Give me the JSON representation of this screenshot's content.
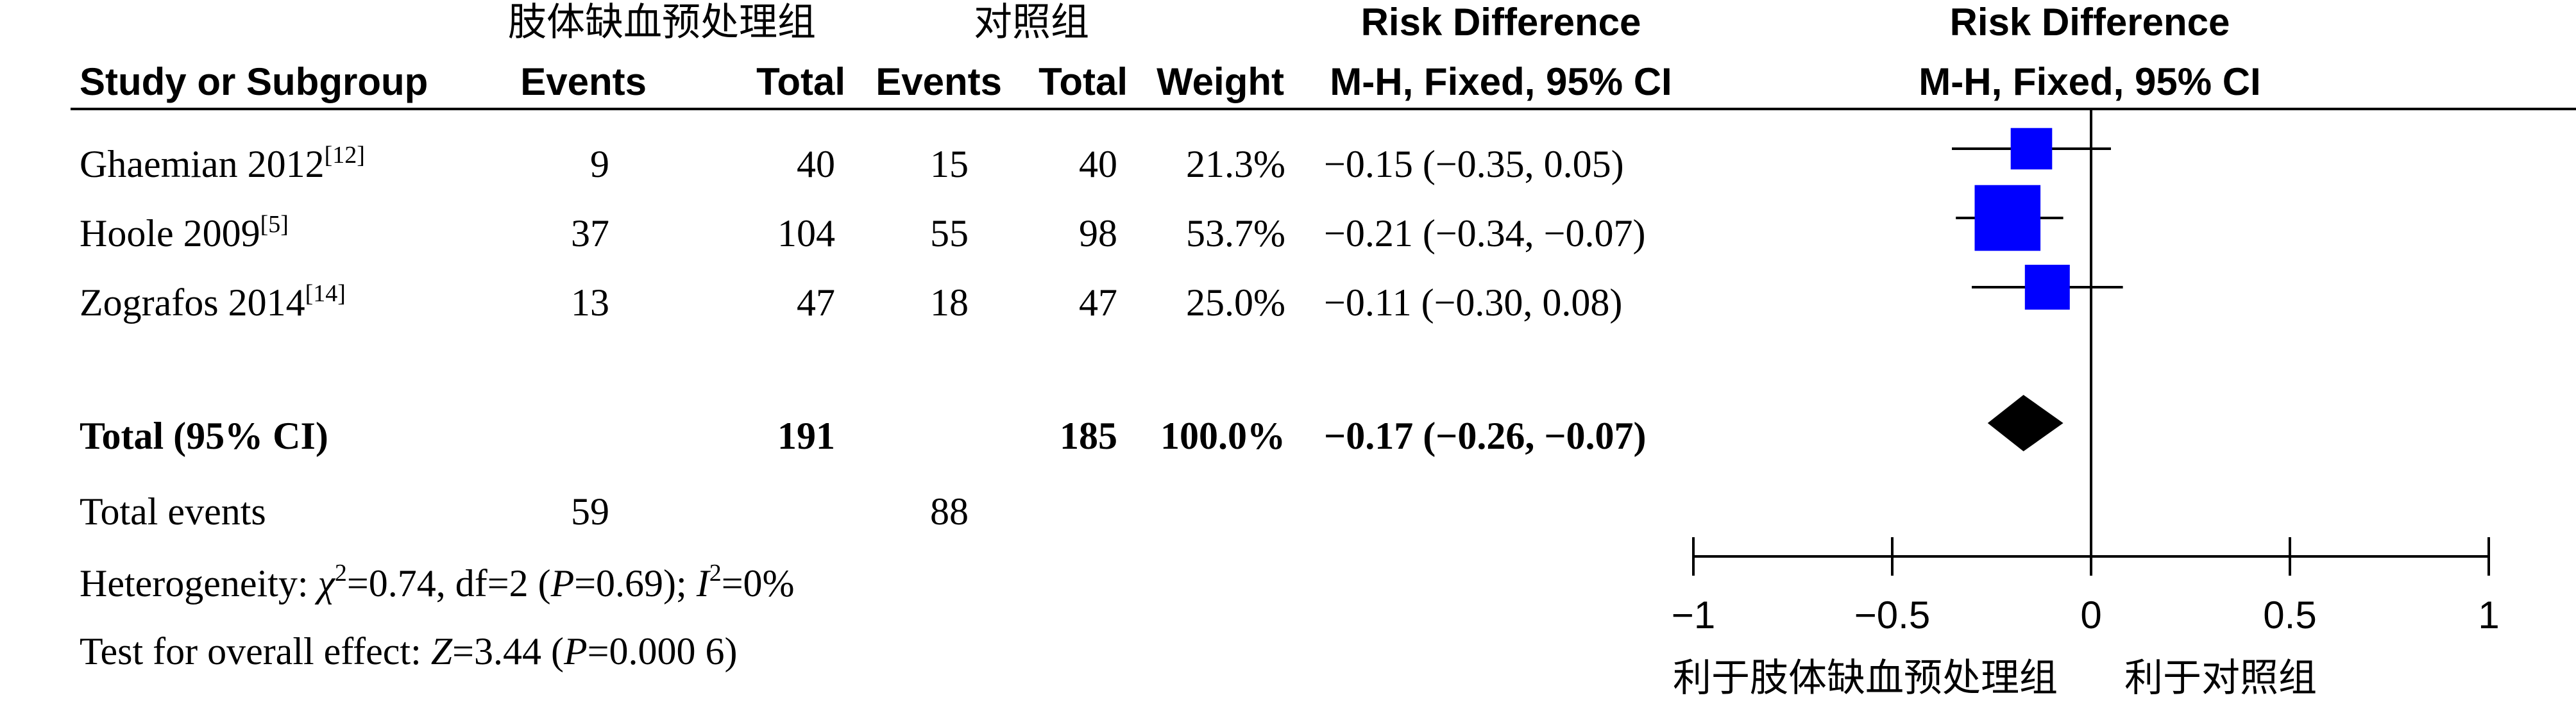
{
  "header": {
    "group1_name": "肢体缺血预处理组",
    "group2_name": "对照组",
    "col_study": "Study or Subgroup",
    "col_events1": "Events",
    "col_total1": "Total",
    "col_events2": "Events",
    "col_total2": "Total",
    "col_weight": "Weight",
    "col_rd_title": "Risk Difference",
    "col_rd_method": "M-H, Fixed, 95% CI",
    "plot_title": "Risk Difference",
    "plot_method": "M-H, Fixed, 95% CI"
  },
  "studies": [
    {
      "name": "Ghaemian 2012",
      "ref": "[12]",
      "events1": "9",
      "total1": "40",
      "events2": "15",
      "total2": "40",
      "weight": "21.3%",
      "ci_text": "−0.15 (−0.35, 0.05)"
    },
    {
      "name": "Hoole 2009",
      "ref": "[5]",
      "events1": "37",
      "total1": "104",
      "events2": "55",
      "total2": "98",
      "weight": "53.7%",
      "ci_text": "−0.21 (−0.34, −0.07)"
    },
    {
      "name": "Zografos 2014",
      "ref": "[14]",
      "events1": "13",
      "total1": "47",
      "events2": "18",
      "total2": "47",
      "weight": "25.0%",
      "ci_text": "−0.11 (−0.30, 0.08)"
    }
  ],
  "total": {
    "label": "Total (95% CI)",
    "total1": "191",
    "total2": "185",
    "weight": "100.0%",
    "ci_text": "−0.17 (−0.26, −0.07)"
  },
  "total_events": {
    "label": "Total events",
    "events1": "59",
    "events2": "88"
  },
  "heterogeneity": {
    "prefix": "Heterogeneity: ",
    "chi_symbol": "χ",
    "chi_exp": "2",
    "chi_rest": "=0.74, df=2 (",
    "p_symbol": "P",
    "p_rest": "=0.69); ",
    "i_symbol": "I",
    "i_exp": "2",
    "i_rest": "=0%"
  },
  "overall_effect": {
    "prefix": "Test for overall effect: ",
    "z_symbol": "Z",
    "z_rest": "=3.44 (",
    "p_symbol": "P",
    "p_rest": "=0.000 6)"
  },
  "colors": {
    "marker": "#0000ff",
    "diamond": "#000000",
    "line": "#000000"
  },
  "chart_data": {
    "type": "forest",
    "title": "Risk Difference",
    "subtitle": "M-H, Fixed, 95% CI",
    "xlim": [
      -1,
      1
    ],
    "ticks": [
      -1,
      -0.5,
      0,
      0.5,
      1
    ],
    "tick_labels": [
      "−1",
      "−0.5",
      "0",
      "0.5",
      "1"
    ],
    "left_label": "利于肢体缺血预处理组",
    "right_label": "利于对照组",
    "studies": [
      {
        "name": "Ghaemian 2012",
        "estimate": -0.15,
        "lower": -0.35,
        "upper": 0.05,
        "weight": 21.3
      },
      {
        "name": "Hoole 2009",
        "estimate": -0.21,
        "lower": -0.34,
        "upper": -0.07,
        "weight": 53.7
      },
      {
        "name": "Zografos 2014",
        "estimate": -0.11,
        "lower": -0.3,
        "upper": 0.08,
        "weight": 25.0
      }
    ],
    "pooled": {
      "estimate": -0.17,
      "lower": -0.26,
      "upper": -0.07
    }
  }
}
